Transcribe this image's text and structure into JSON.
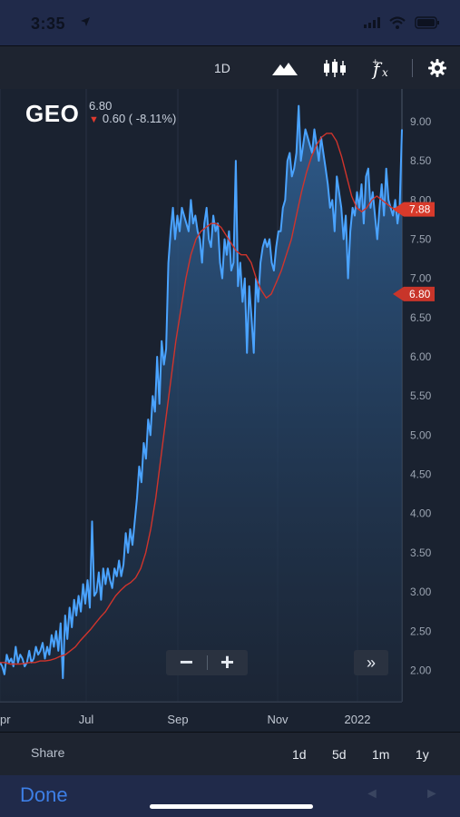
{
  "status": {
    "time": "3:35"
  },
  "toolbar": {
    "interval": "1D",
    "icons": [
      "mountain-chart-icon",
      "candlestick-icon",
      "function-icon",
      "gear-icon"
    ]
  },
  "quote": {
    "symbol": "GEO",
    "last": "6.80",
    "change": "0.60 ( -8.11%)",
    "direction": "down"
  },
  "price_tags": [
    {
      "label": "7.88",
      "value": 7.88,
      "color": "#d83a2b"
    },
    {
      "label": "6.80",
      "value": 6.8,
      "color": "#c8352a"
    }
  ],
  "chart_data": {
    "type": "area",
    "y_axis": {
      "ticks": [
        "9.00",
        "8.50",
        "8.00",
        "7.50",
        "7.00",
        "6.50",
        "6.00",
        "5.50",
        "5.00",
        "4.50",
        "4.00",
        "3.50",
        "3.00",
        "2.50",
        "2.00"
      ],
      "range": [
        1.6,
        9.3
      ]
    },
    "x_axis": {
      "ticks": [
        "pr",
        "Jul",
        "Sep",
        "Nov",
        "2022"
      ]
    },
    "series": [
      {
        "line_color": "#4aa3ff",
        "values": [
          2.1,
          2.05,
          1.95,
          2.2,
          2.1,
          2.15,
          2.05,
          2.3,
          2.1,
          2.2,
          2.15,
          2.05,
          2.1,
          2.25,
          2.1,
          2.15,
          2.3,
          2.2,
          2.25,
          2.35,
          2.15,
          2.3,
          2.2,
          2.45,
          2.3,
          2.5,
          2.25,
          2.6,
          1.9,
          2.7,
          2.4,
          2.8,
          2.55,
          2.9,
          2.7,
          2.95,
          2.75,
          3.1,
          2.85,
          3.15,
          2.8,
          3.9,
          2.95,
          3.0,
          3.25,
          2.9,
          3.3,
          3.1,
          3.3,
          3.15,
          3.05,
          3.3,
          3.2,
          3.4,
          3.2,
          3.35,
          3.75,
          3.5,
          3.8,
          3.6,
          3.9,
          4.2,
          4.6,
          4.4,
          4.9,
          4.7,
          5.2,
          5.0,
          5.5,
          5.3,
          6.0,
          5.4,
          6.2,
          5.9,
          6.1,
          7.2,
          7.6,
          7.9,
          7.5,
          7.8,
          7.6,
          7.9,
          7.8,
          7.7,
          7.6,
          8.0,
          7.7,
          7.8,
          7.6,
          7.5,
          7.2,
          7.7,
          7.9,
          7.5,
          7.4,
          7.8,
          7.6,
          7.7,
          7.2,
          7.0,
          7.5,
          7.3,
          7.6,
          7.1,
          7.2,
          8.5,
          6.9,
          7.2,
          6.7,
          7.0,
          6.05,
          6.9,
          6.5,
          6.05,
          7.0,
          6.7,
          7.2,
          7.4,
          7.5,
          7.4,
          7.5,
          7.2,
          7.1,
          7.4,
          7.6,
          7.6,
          7.9,
          8.0,
          8.5,
          8.6,
          8.3,
          8.4,
          8.6,
          9.2,
          8.5,
          8.7,
          8.9,
          8.8,
          8.7,
          8.6,
          8.9,
          8.7,
          8.5,
          8.8,
          8.6,
          8.4,
          8.2,
          7.9,
          8.0,
          7.6,
          8.3,
          8.1,
          7.9,
          7.5,
          7.8,
          7.0,
          7.6,
          7.9,
          7.8,
          8.1,
          7.9,
          8.2,
          7.7,
          8.3,
          8.4,
          7.9,
          8.1,
          7.8,
          7.5,
          7.9,
          8.2,
          7.8,
          8.4,
          8.0,
          7.9,
          7.8,
          8.0,
          7.7,
          7.9,
          8.9
        ]
      },
      {
        "line_color": "#d0342c",
        "values": [
          2.1,
          2.1,
          2.08,
          2.08,
          2.08,
          2.09,
          2.1,
          2.1,
          2.12,
          2.12,
          2.13,
          2.15,
          2.18,
          2.2,
          2.25,
          2.3,
          2.38,
          2.45,
          2.52,
          2.6,
          2.68,
          2.75,
          2.85,
          2.95,
          3.02,
          3.08,
          3.12,
          3.18,
          3.3,
          3.5,
          3.8,
          4.2,
          4.7,
          5.2,
          5.7,
          6.2,
          6.6,
          7.0,
          7.3,
          7.5,
          7.6,
          7.65,
          7.7,
          7.7,
          7.65,
          7.55,
          7.45,
          7.35,
          7.3,
          7.3,
          7.2,
          7.0,
          6.85,
          6.75,
          6.8,
          6.95,
          7.1,
          7.3,
          7.5,
          7.8,
          8.1,
          8.35,
          8.55,
          8.7,
          8.8,
          8.85,
          8.85,
          8.75,
          8.55,
          8.3,
          8.05,
          7.9,
          7.85,
          7.9,
          8.0,
          8.05,
          8.0,
          7.95,
          7.9,
          7.88,
          7.88
        ]
      }
    ]
  },
  "controls": {
    "zoom_out": "−",
    "zoom_in": "+",
    "fast_forward": "»"
  },
  "bottom": {
    "share": "Share",
    "ranges": [
      "1d",
      "5d",
      "1m",
      "1y"
    ]
  },
  "footer": {
    "done": "Done",
    "prev": "◄",
    "next": "►"
  }
}
